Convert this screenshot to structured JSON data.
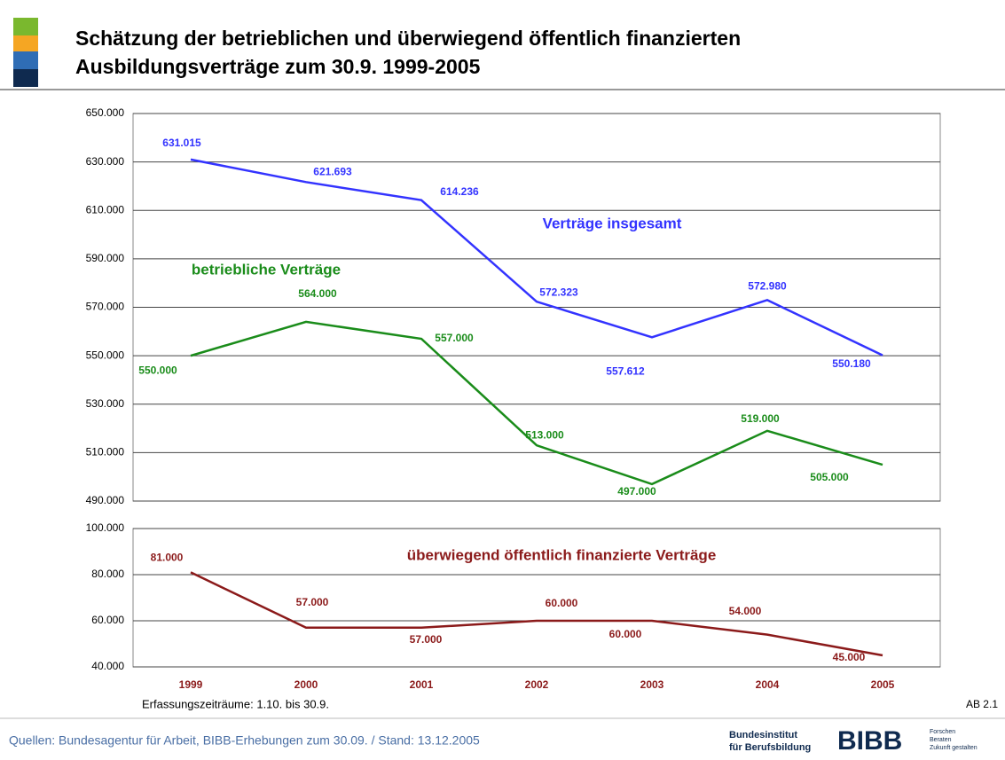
{
  "header": {
    "title_lines": [
      "Schätzung der betrieblichen und überwiegend öffentlich finanzierten",
      "Ausbildungsverträge zum 30.9. 1999-2005"
    ]
  },
  "chart_data": [
    {
      "type": "line",
      "ylim": [
        490000,
        650000
      ],
      "yticks": [
        {
          "value": 490000,
          "label": "490.000"
        },
        {
          "value": 510000,
          "label": "510.000"
        },
        {
          "value": 530000,
          "label": "530.000"
        },
        {
          "value": 550000,
          "label": "550.000"
        },
        {
          "value": 570000,
          "label": "570.000"
        },
        {
          "value": 590000,
          "label": "590.000"
        },
        {
          "value": 610000,
          "label": "610.000"
        },
        {
          "value": 630000,
          "label": "630.000"
        },
        {
          "value": 650000,
          "label": "650.000"
        }
      ],
      "grid": true,
      "series": [
        {
          "name": "Verträge insgesamt",
          "color": "#3333ff",
          "values": [
            631015,
            621693,
            614236,
            572323,
            557612,
            572980,
            550180
          ],
          "value_labels": [
            "631.015",
            "621.693",
            "614.236",
            "572.323",
            "557.612",
            "572.980",
            "550.180"
          ]
        },
        {
          "name": "betriebliche Verträge",
          "color": "#1a8c1a",
          "values": [
            550000,
            564000,
            557000,
            513000,
            497000,
            519000,
            505000
          ],
          "value_labels": [
            "550.000",
            "564.000",
            "557.000",
            "513.000",
            "497.000",
            "519.000",
            "505.000"
          ]
        }
      ]
    },
    {
      "type": "line",
      "categories": [
        "1999",
        "2000",
        "2001",
        "2002",
        "2003",
        "2004",
        "2005"
      ],
      "ylim": [
        40000,
        100000
      ],
      "yticks": [
        {
          "value": 40000,
          "label": "40.000"
        },
        {
          "value": 60000,
          "label": "60.000"
        },
        {
          "value": 80000,
          "label": "80.000"
        },
        {
          "value": 100000,
          "label": "100.000"
        }
      ],
      "grid": true,
      "note": "Erfassungszeiträume: 1.10. bis 30.9.",
      "series": [
        {
          "name": "überwiegend öffentlich finanzierte Verträge",
          "color": "#8b1a1a",
          "values": [
            81000,
            57000,
            57000,
            60000,
            60000,
            54000,
            45000
          ],
          "value_labels": [
            "81.000",
            "57.000",
            "57.000",
            "60.000",
            "60.000",
            "54.000",
            "45.000"
          ]
        }
      ]
    }
  ],
  "footer": {
    "code": "AB 2.1",
    "source": "Quellen: Bundesagentur für Arbeit, BIBB-Erhebungen zum 30.09. / Stand: 13.12.2005",
    "institute_lines": [
      "Bundesinstitut",
      "für Berufsbildung"
    ],
    "logo": "BIBB",
    "slogan_lines": [
      "Forschen",
      "Beraten",
      "Zukunft gestalten"
    ]
  }
}
